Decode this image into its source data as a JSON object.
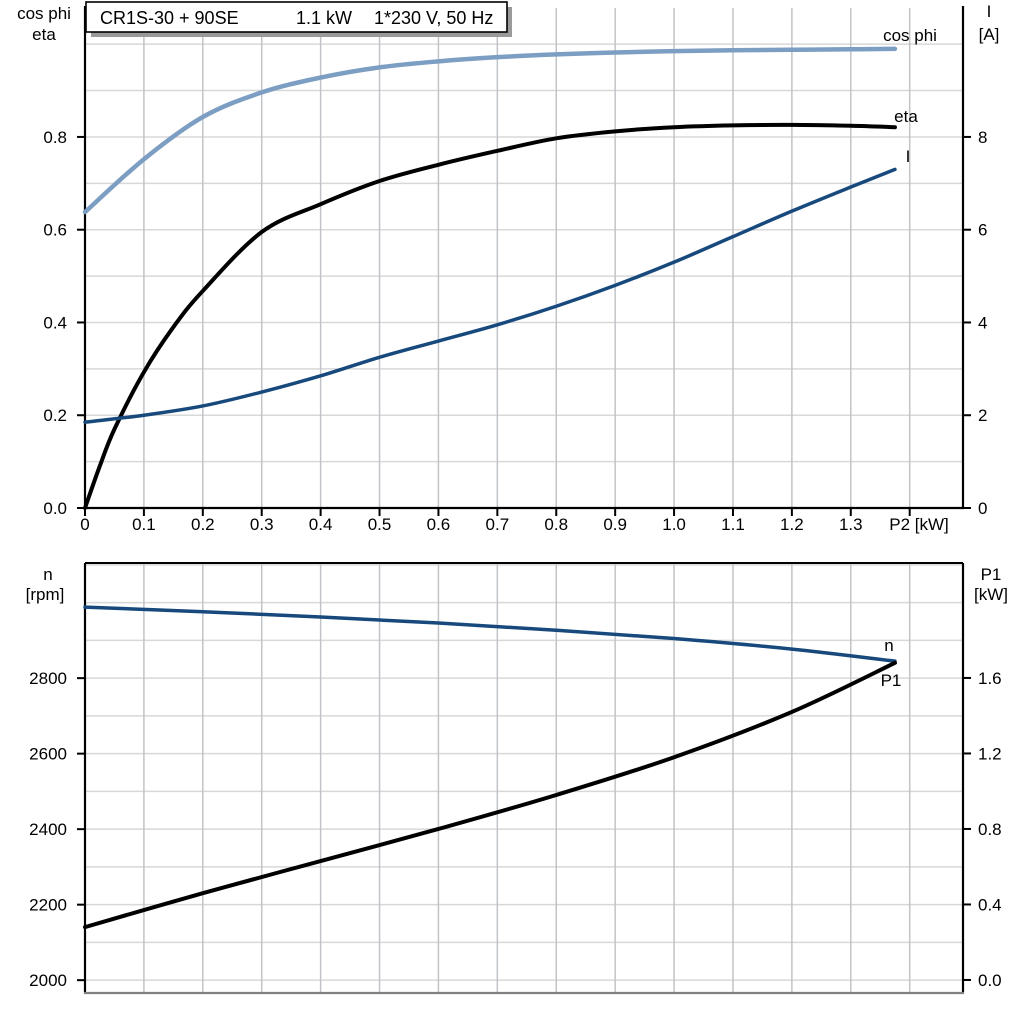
{
  "header": {
    "title": "CR1S-30 + 90SE   1.1 kW   1*230 V, 50 Hz",
    "title_parts": [
      "CR1S-30 + 90SE",
      "1.1 kW",
      "1*230 V, 50 Hz"
    ]
  },
  "colors": {
    "light_blue": "#7D9EC3",
    "dark_blue": "#17497D",
    "black": "#000000",
    "grid_horizontal": "#D8D8D8",
    "grid_vertical": "#C0C4C8",
    "axis": "#000000",
    "bottom_border_gray": "#808080",
    "title_box_shadow": "#9A9A9A"
  },
  "chart_data": [
    {
      "type": "line",
      "title": "CR1S-30 + 90SE   1.1 kW   1*230 V, 50 Hz",
      "x_axis": {
        "label": "P2 [kW]",
        "min": 0,
        "max": 1.4905,
        "tick_start": 0,
        "tick_step": 0.1,
        "tick_labels": [
          "0",
          "0.1",
          "0.2",
          "0.3",
          "0.4",
          "0.5",
          "0.6",
          "0.7",
          "0.8",
          "0.9",
          "1.0",
          "1.1",
          "1.2",
          "1.3"
        ],
        "grid_start": 0.1,
        "grid_step": 0.1,
        "grid_end": 1.4
      },
      "y_left": {
        "title_lines": [
          "cos phi",
          "eta"
        ],
        "min": 0,
        "max": 1.078,
        "tick_start": 0,
        "tick_step": 0.2,
        "tick_labels": [
          "0.0",
          "0.2",
          "0.4",
          "0.6",
          "0.8"
        ],
        "grid_start": 0.1,
        "grid_step": 0.1,
        "grid_end": 1.0
      },
      "y_right": {
        "title_lines": [
          "I",
          "[A]"
        ],
        "min": 0,
        "max": 10.78,
        "tick_start": 0,
        "tick_step": 2,
        "tick_labels": [
          "0",
          "2",
          "4",
          "6",
          "8"
        ]
      },
      "series": [
        {
          "name": "cos phi",
          "axis": "left",
          "color": "#7D9EC3",
          "x": [
            0,
            0.1,
            0.2,
            0.3,
            0.4,
            0.5,
            0.6,
            0.7,
            0.8,
            0.9,
            1.0,
            1.1,
            1.2,
            1.3,
            1.375
          ],
          "y": [
            0.638,
            0.752,
            0.843,
            0.896,
            0.928,
            0.95,
            0.963,
            0.972,
            0.978,
            0.982,
            0.985,
            0.987,
            0.988,
            0.989,
            0.99
          ]
        },
        {
          "name": "eta",
          "axis": "left",
          "color": "#000000",
          "x": [
            0,
            0.025,
            0.05,
            0.1,
            0.15,
            0.2,
            0.3,
            0.4,
            0.5,
            0.6,
            0.7,
            0.8,
            0.9,
            1.0,
            1.1,
            1.2,
            1.3,
            1.375
          ],
          "y": [
            0,
            0.09,
            0.17,
            0.293,
            0.39,
            0.468,
            0.595,
            0.655,
            0.705,
            0.74,
            0.77,
            0.797,
            0.812,
            0.821,
            0.825,
            0.826,
            0.824,
            0.821
          ]
        },
        {
          "name": "I",
          "axis": "right",
          "color": "#17497D",
          "x": [
            0,
            0.1,
            0.2,
            0.3,
            0.4,
            0.5,
            0.6,
            0.7,
            0.8,
            0.9,
            1.0,
            1.1,
            1.2,
            1.3,
            1.375
          ],
          "y": [
            1.85,
            2.0,
            2.2,
            2.5,
            2.85,
            3.25,
            3.6,
            3.95,
            4.35,
            4.8,
            5.3,
            5.85,
            6.4,
            6.92,
            7.3
          ]
        }
      ]
    },
    {
      "type": "line",
      "title": "",
      "x_axis": {
        "label": "",
        "min": 0,
        "max": 1.4905,
        "tick_labels": [],
        "grid_start": 0.1,
        "grid_step": 0.1,
        "grid_end": 1.4
      },
      "y_left": {
        "title_lines": [
          "n",
          "[rpm]"
        ],
        "min": 1966,
        "max": 3105,
        "tick_start": 2000,
        "tick_step": 200,
        "tick_labels": [
          "2000",
          "2200",
          "2400",
          "2600",
          "2800"
        ],
        "grid_start": 2000,
        "grid_step": 100,
        "grid_end": 3100
      },
      "y_right": {
        "title_lines": [
          "P1",
          "[kW]"
        ],
        "min": -0.069,
        "max": 2.209,
        "tick_start": 0,
        "tick_step": 0.4,
        "tick_labels": [
          "0.0",
          "0.4",
          "0.8",
          "1.2",
          "1.6"
        ]
      },
      "series": [
        {
          "name": "n",
          "axis": "left",
          "color": "#17497D",
          "x": [
            0,
            0.2,
            0.4,
            0.6,
            0.8,
            1.0,
            1.2,
            1.375
          ],
          "y": [
            2988,
            2976,
            2962,
            2946,
            2927,
            2905,
            2877,
            2845
          ]
        },
        {
          "name": "P1",
          "axis": "right",
          "color": "#000000",
          "x": [
            0,
            0.2,
            0.4,
            0.6,
            0.8,
            1.0,
            1.2,
            1.375
          ],
          "y": [
            0.28,
            0.46,
            0.63,
            0.8,
            0.98,
            1.18,
            1.42,
            1.68
          ]
        }
      ]
    }
  ]
}
